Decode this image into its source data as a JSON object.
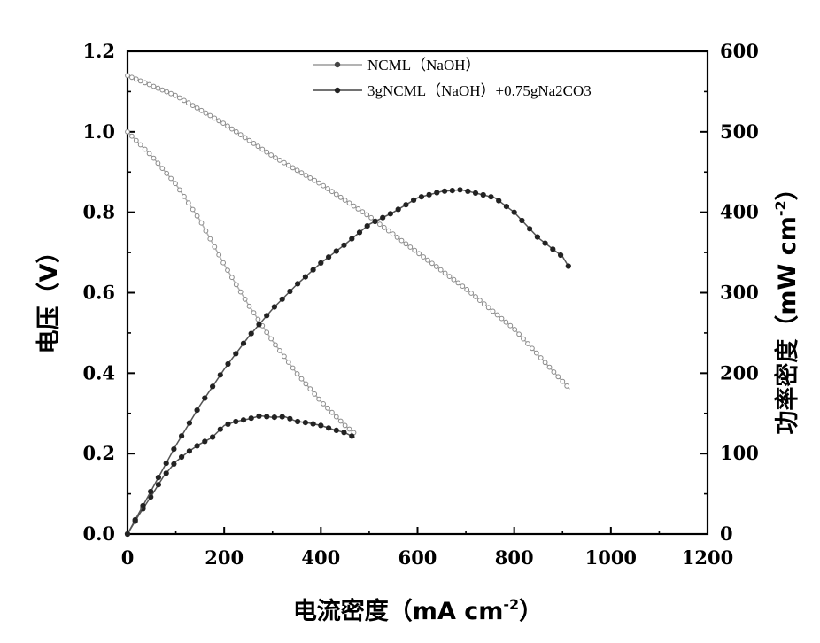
{
  "chart_data": {
    "type": "line",
    "title": "",
    "xlabel": "电流密度（mA cm",
    "xlabel_sup": "-2",
    "xlabel_end": "）",
    "ylabel": "电压（V）",
    "y2label": "功率密度（mW cm",
    "y2label_sup": "-2",
    "y2label_end": "）",
    "xlim": [
      0,
      1200
    ],
    "ylim": [
      0,
      1.2
    ],
    "y2lim": [
      0,
      600
    ],
    "x_ticks": [
      "0",
      "200",
      "400",
      "600",
      "800",
      "1000",
      "1200"
    ],
    "y_ticks": [
      "0.0",
      "0.2",
      "0.4",
      "0.6",
      "0.8",
      "1.0",
      "1.2"
    ],
    "y2_ticks": [
      "0",
      "100",
      "200",
      "300",
      "400",
      "500",
      "600"
    ],
    "legend": [
      "NCML（NaOH）",
      "3gNCML（NaOH）+0.75gNa2CO3"
    ],
    "series": [
      {
        "name": "NCML（NaOH）",
        "kind": "voltage",
        "axis": "left",
        "x": [
          0,
          50,
          100,
          150,
          200,
          250,
          300,
          350,
          400,
          450,
          470
        ],
        "y": [
          1.0,
          0.94,
          0.87,
          0.78,
          0.67,
          0.57,
          0.48,
          0.4,
          0.33,
          0.27,
          0.25
        ]
      },
      {
        "name": "NCML（NaOH）",
        "kind": "power",
        "axis": "right",
        "x": [
          0,
          25,
          50,
          75,
          100,
          125,
          150,
          175,
          200,
          225,
          250,
          275,
          300,
          325,
          350,
          375,
          400,
          425,
          450,
          470
        ],
        "y": [
          0,
          25,
          48,
          72,
          90,
          102,
          112,
          120,
          135,
          140,
          143,
          147,
          145,
          146,
          140,
          138,
          135,
          130,
          126,
          120
        ]
      },
      {
        "name": "3gNCML（NaOH）+0.75gNa2CO3",
        "kind": "voltage",
        "axis": "left",
        "x": [
          0,
          100,
          200,
          300,
          400,
          500,
          600,
          700,
          800,
          915
        ],
        "y": [
          1.14,
          1.09,
          1.02,
          0.94,
          0.87,
          0.79,
          0.7,
          0.61,
          0.51,
          0.36
        ]
      },
      {
        "name": "3gNCML（NaOH）+0.75gNa2CO3",
        "kind": "power",
        "axis": "right",
        "x": [
          0,
          50,
          100,
          150,
          200,
          250,
          300,
          350,
          400,
          450,
          500,
          550,
          600,
          650,
          690,
          720,
          760,
          800,
          850,
          900,
          915
        ],
        "y": [
          0,
          55,
          110,
          160,
          205,
          245,
          280,
          310,
          337,
          360,
          385,
          400,
          418,
          426,
          428,
          424,
          418,
          400,
          368,
          345,
          330
        ]
      }
    ]
  }
}
